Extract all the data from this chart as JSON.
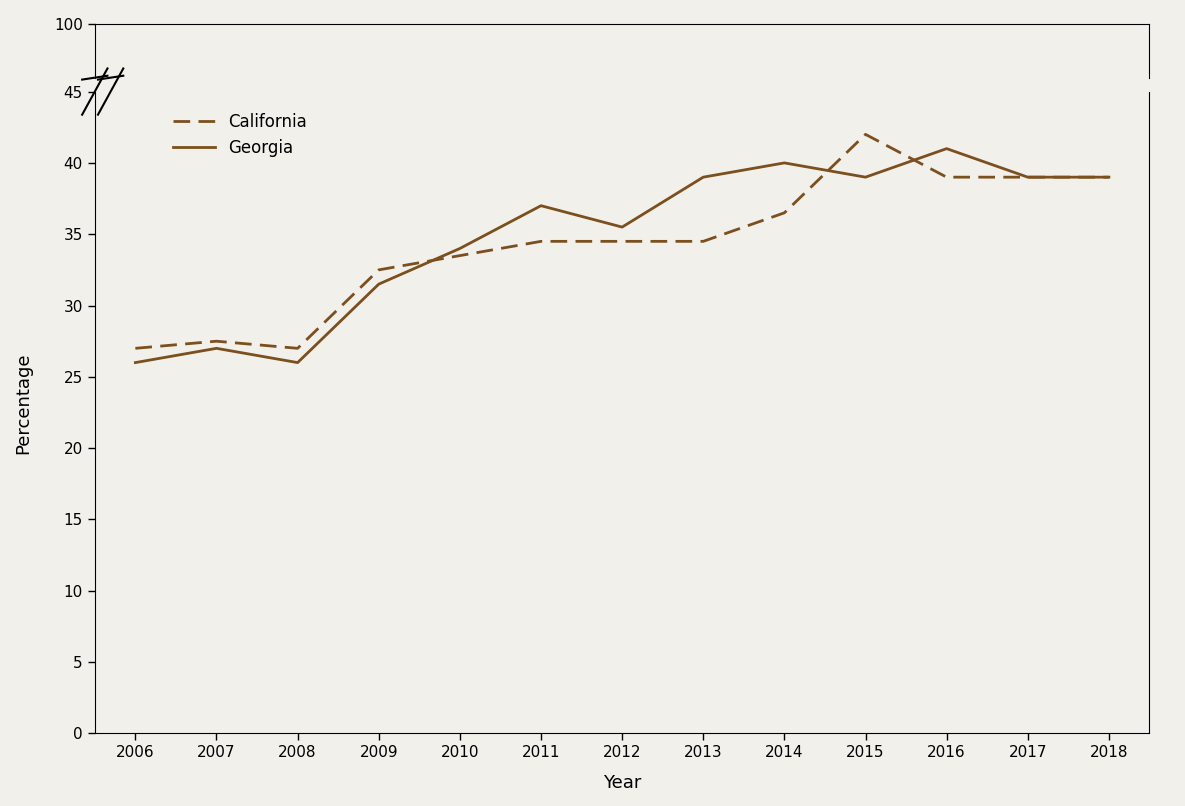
{
  "years": [
    2006,
    2007,
    2008,
    2009,
    2010,
    2011,
    2012,
    2013,
    2014,
    2015,
    2016,
    2017,
    2018
  ],
  "california": [
    27.0,
    27.5,
    27.0,
    32.5,
    33.5,
    34.5,
    34.5,
    34.5,
    36.5,
    42.0,
    39.0,
    39.0,
    39.0
  ],
  "georgia": [
    26.0,
    27.0,
    26.0,
    31.5,
    34.0,
    37.0,
    35.5,
    39.0,
    40.0,
    39.0,
    41.0,
    39.0,
    39.0
  ],
  "line_color": "#7B4F1E",
  "xlabel": "Year",
  "ylabel": "Percentage",
  "xlim": [
    2005.5,
    2018.5
  ],
  "background_color": "#F2F0EB",
  "legend_california": "California",
  "legend_georgia": "Georgia",
  "linewidth": 2.0,
  "lower_ylim": [
    0,
    45
  ],
  "upper_ylim": [
    95,
    100
  ],
  "lower_yticks": [
    0,
    5,
    10,
    15,
    20,
    25,
    30,
    35,
    40,
    45
  ],
  "upper_yticks": [
    100
  ]
}
